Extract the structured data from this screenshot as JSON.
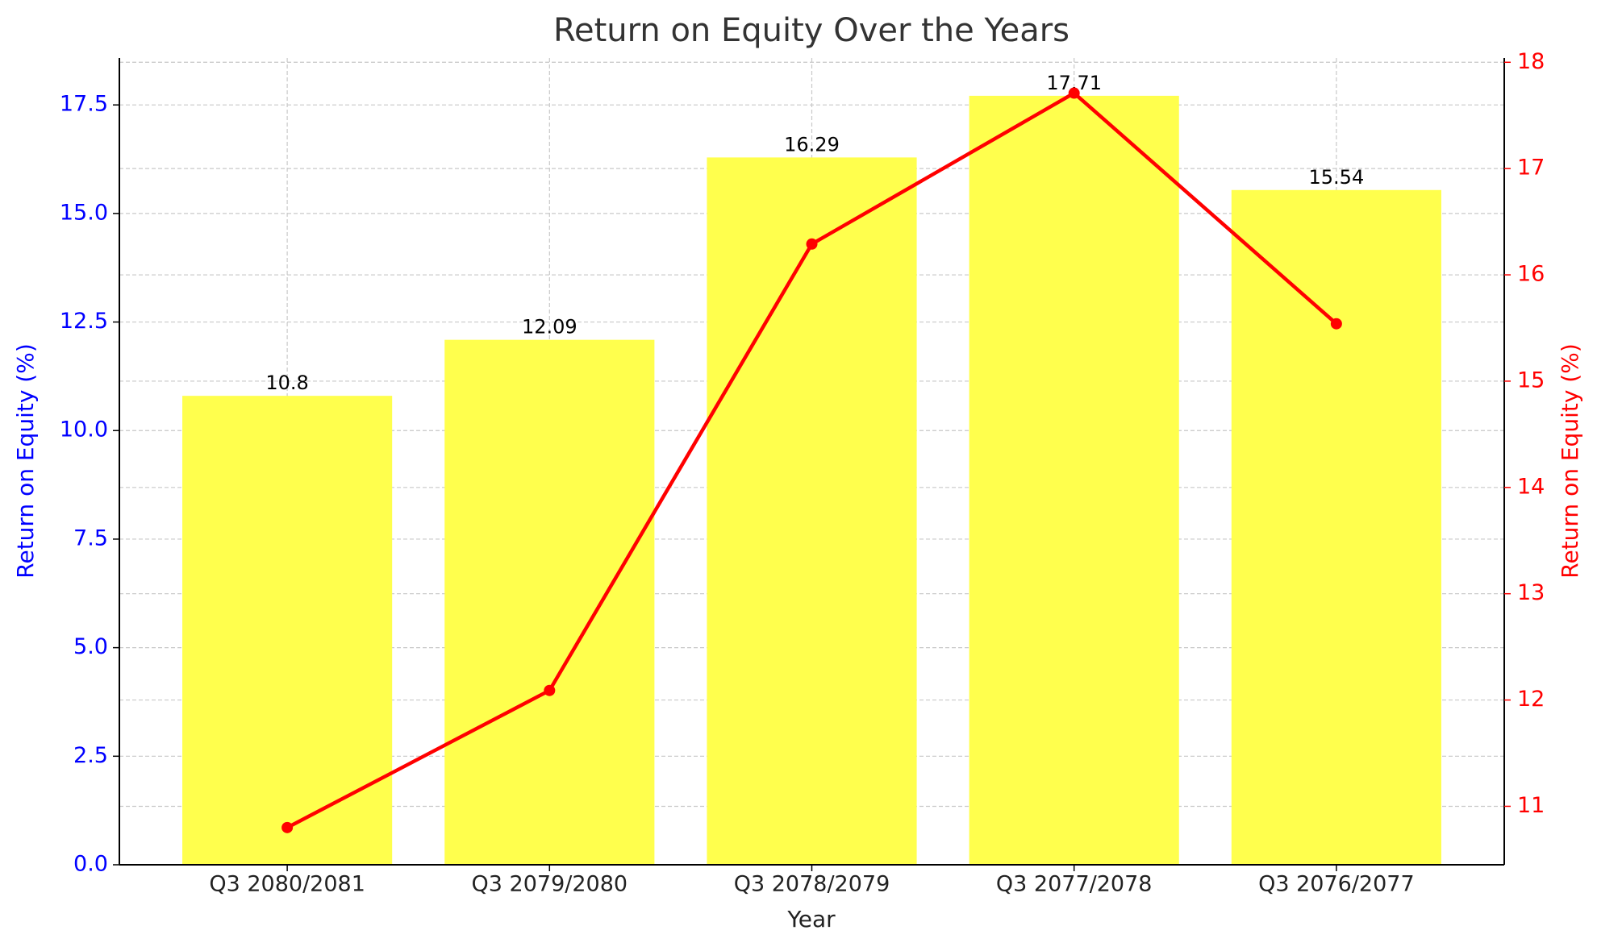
{
  "chart_data": {
    "type": "bar",
    "title": "Return on Equity Over the Years",
    "xlabel": "Year",
    "ylabel": "Return on Equity (%)",
    "y2label": "Return on Equity (%)",
    "ylabel_color": "#0000ff",
    "y2label_color": "#ff0000",
    "categories": [
      "Q3 2080/2081",
      "Q3 2079/2080",
      "Q3 2078/2079",
      "Q3 2077/2078",
      "Q3 2076/2077"
    ],
    "series": [
      {
        "type": "bar",
        "color": "#ffff4d",
        "values": [
          10.8,
          12.09,
          16.29,
          17.71,
          15.54
        ]
      },
      {
        "type": "line",
        "color": "#ff0000",
        "axis": "y2",
        "values": [
          10.8,
          12.09,
          16.29,
          17.71,
          15.54
        ]
      }
    ],
    "ylim": [
      0,
      18.58
    ],
    "yticks": [
      {
        "value": 0,
        "label": "0.0"
      },
      2.5,
      {
        "value": 5,
        "label": "5.0"
      },
      7.5,
      {
        "value": 10,
        "label": "10.0"
      },
      12.5,
      {
        "value": 15,
        "label": "15.0"
      },
      17.5
    ],
    "y2lim": [
      10.45,
      18.04
    ],
    "y2ticks": [
      11,
      12,
      13,
      14,
      15,
      16,
      17,
      18
    ],
    "grid": true
  }
}
